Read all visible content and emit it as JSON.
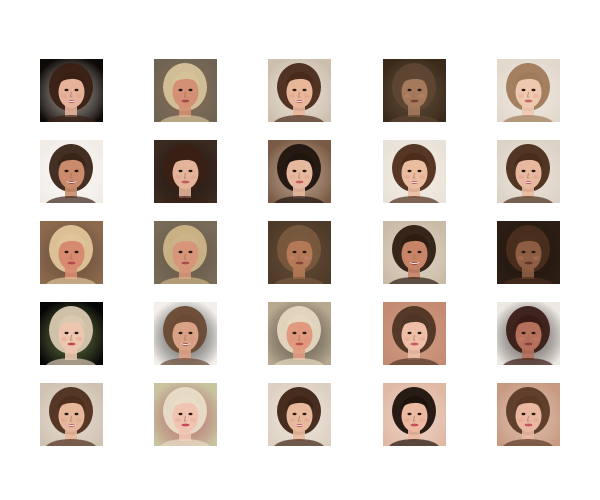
{
  "figure": {
    "rows": 5,
    "cols": 5
  },
  "tiles": [
    {
      "bg": "#0e0a08",
      "hair": "#3a2014",
      "skin": "#e6b39a",
      "mouth": "#c0565a",
      "smile": true,
      "accent": "#f2e6dc"
    },
    {
      "bg": "#6f6452",
      "hair": "#d6c29a",
      "skin": "#d39074",
      "mouth": "#a44a4a",
      "smile": false,
      "accent": "#8c6f5a"
    },
    {
      "bg": "#cdbfae",
      "hair": "#4a2a1a",
      "skin": "#e8b79a",
      "mouth": "#c45a5e",
      "smile": true,
      "accent": "#f3ece4"
    },
    {
      "bg": "#3a2a1a",
      "hair": "#5e4632",
      "skin": "#a57a5c",
      "mouth": "#7a3e34",
      "smile": false,
      "accent": "#6e5a44"
    },
    {
      "bg": "#e2d8cc",
      "hair": "#a07a5a",
      "skin": "#efc8b0",
      "mouth": "#c6666a",
      "smile": false,
      "accent": "#f6efe8"
    },
    {
      "bg": "#f1ece6",
      "hair": "#3a2418",
      "skin": "#c98b6c",
      "mouth": "#9a4a42",
      "smile": true,
      "accent": "#ffffff"
    },
    {
      "bg": "#3b2a20",
      "hair": "#3a2014",
      "skin": "#e3b49a",
      "mouth": "#c35a5c",
      "smile": false,
      "accent": "#1c1410"
    },
    {
      "bg": "#7a5a44",
      "hair": "#1f140e",
      "skin": "#e6b89e",
      "mouth": "#cc5a60",
      "smile": false,
      "accent": "#d8c4b4"
    },
    {
      "bg": "#e9e2d8",
      "hair": "#4e2c1a",
      "skin": "#ebbda0",
      "mouth": "#c85a5c",
      "smile": true,
      "accent": "#f6f1ea"
    },
    {
      "bg": "#dcd2c6",
      "hair": "#4a2c1a",
      "skin": "#e8b99e",
      "mouth": "#c25a5c",
      "smile": true,
      "accent": "#f2ebe4"
    },
    {
      "bg": "#8c6a4e",
      "hair": "#e0c59a",
      "skin": "#d88a6e",
      "mouth": "#b24848",
      "smile": false,
      "accent": "#5a4332"
    },
    {
      "bg": "#786c58",
      "hair": "#cdb488",
      "skin": "#d7967a",
      "mouth": "#a84c4a",
      "smile": false,
      "accent": "#5e4e3e"
    },
    {
      "bg": "#4e3a28",
      "hair": "#7a5a3e",
      "skin": "#b47a58",
      "mouth": "#8a4236",
      "smile": false,
      "accent": "#6a523c"
    },
    {
      "bg": "#c9bba6",
      "hair": "#2e1c12",
      "skin": "#c78466",
      "mouth": "#9a4640",
      "smile": true,
      "accent": "#e8ddd0"
    },
    {
      "bg": "#2c1e14",
      "hair": "#4a2e1e",
      "skin": "#8e5e44",
      "mouth": "#6a3028",
      "smile": false,
      "accent": "#1c120c"
    },
    {
      "bg": "#050505",
      "hair": "#d8c8b0",
      "skin": "#ecc6ae",
      "mouth": "#c24850",
      "smile": false,
      "accent": "#8aa05a"
    },
    {
      "bg": "#f3f0ec",
      "hair": "#6a4a34",
      "skin": "#d9a286",
      "mouth": "#a8504c",
      "smile": true,
      "accent": "#050505"
    },
    {
      "bg": "#b8a890",
      "hair": "#e6d8c0",
      "skin": "#e09a7e",
      "mouth": "#b84e4e",
      "smile": false,
      "accent": "#303028"
    },
    {
      "bg": "#c48a72",
      "hair": "#4e3424",
      "skin": "#eebea6",
      "mouth": "#c8585e",
      "smile": false,
      "accent": "#d8a48c"
    },
    {
      "bg": "#ece8e2",
      "hair": "#3a1c16",
      "skin": "#b4705a",
      "mouth": "#8e3c38",
      "smile": false,
      "accent": "#120c0a"
    },
    {
      "bg": "#cfc2b2",
      "hair": "#4e2e1c",
      "skin": "#e6b79a",
      "mouth": "#c45c5e",
      "smile": true,
      "accent": "#efe6dc"
    },
    {
      "bg": "#c8c4a0",
      "hair": "#e9ddc8",
      "skin": "#f0c4b0",
      "mouth": "#c8485a",
      "smile": false,
      "accent": "#b04a5a"
    },
    {
      "bg": "#ddd0c2",
      "hair": "#3e2416",
      "skin": "#e9b99c",
      "mouth": "#c85a5e",
      "smile": true,
      "accent": "#f4ede6"
    },
    {
      "bg": "#e0b8a4",
      "hair": "#1e120c",
      "skin": "#ebbaa0",
      "mouth": "#c8505a",
      "smile": false,
      "accent": "#f3e0d4"
    },
    {
      "bg": "#c89a82",
      "hair": "#5a3a26",
      "skin": "#eab8a0",
      "mouth": "#c4585c",
      "smile": false,
      "accent": "#e8cfc0"
    }
  ]
}
